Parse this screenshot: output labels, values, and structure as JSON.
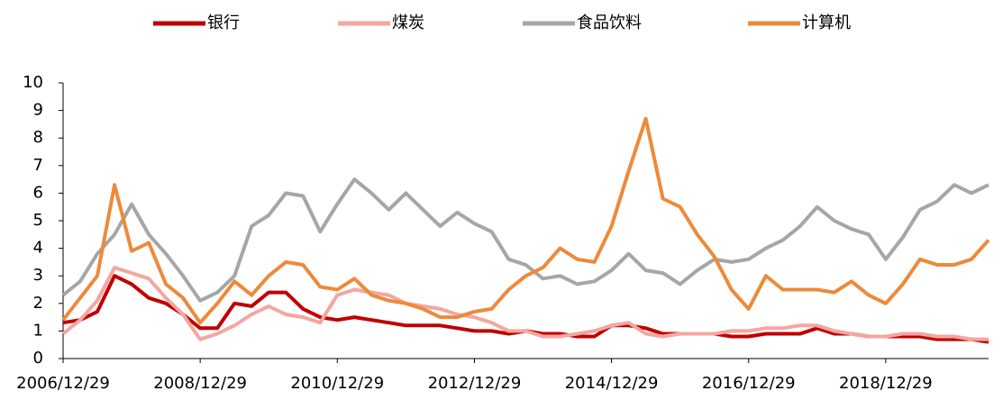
{
  "chart_data": {
    "type": "line",
    "x": [
      "2006/12/29",
      null,
      null,
      null,
      null,
      null,
      null,
      null,
      "2008/12/29",
      null,
      null,
      null,
      null,
      null,
      null,
      null,
      "2010/12/29",
      null,
      null,
      null,
      null,
      null,
      null,
      null,
      "2012/12/29",
      null,
      null,
      null,
      null,
      null,
      null,
      null,
      "2014/12/29",
      null,
      null,
      null,
      null,
      null,
      null,
      null,
      "2016/12/29",
      null,
      null,
      null,
      null,
      null,
      null,
      null,
      "2018/12/29",
      null,
      null,
      null,
      null,
      null,
      null
    ],
    "series": [
      {
        "name": "银行",
        "color": "#c00000",
        "values": [
          1.3,
          1.4,
          1.7,
          3.0,
          2.7,
          2.2,
          2.0,
          1.6,
          1.1,
          1.1,
          2.0,
          1.9,
          2.4,
          2.4,
          1.8,
          1.5,
          1.4,
          1.5,
          1.4,
          1.3,
          1.2,
          1.2,
          1.2,
          1.1,
          1.0,
          1.0,
          0.9,
          1.0,
          0.9,
          0.9,
          0.8,
          0.8,
          1.2,
          1.2,
          1.1,
          0.9,
          0.9,
          0.9,
          0.9,
          0.8,
          0.8,
          0.9,
          0.9,
          0.9,
          1.1,
          0.9,
          0.9,
          0.8,
          0.8,
          0.8,
          0.8,
          0.7,
          0.7,
          0.7,
          0.6
        ]
      },
      {
        "name": "煤炭",
        "color": "#f4a6a0",
        "values": [
          0.9,
          1.4,
          2.1,
          3.3,
          3.1,
          2.9,
          2.2,
          1.6,
          0.7,
          0.9,
          1.2,
          1.6,
          1.9,
          1.6,
          1.5,
          1.3,
          2.3,
          2.5,
          2.4,
          2.3,
          2.0,
          1.9,
          1.8,
          1.6,
          1.5,
          1.3,
          1.0,
          1.0,
          0.8,
          0.8,
          0.9,
          1.0,
          1.2,
          1.3,
          0.9,
          0.8,
          0.9,
          0.9,
          0.9,
          1.0,
          1.0,
          1.1,
          1.1,
          1.2,
          1.2,
          1.0,
          0.9,
          0.8,
          0.8,
          0.9,
          0.9,
          0.8,
          0.8,
          0.7,
          0.7
        ]
      },
      {
        "name": "食品饮料",
        "color": "#a6a6a6",
        "values": [
          2.3,
          2.8,
          3.8,
          4.5,
          5.6,
          4.5,
          3.8,
          3.0,
          2.1,
          2.4,
          3.0,
          4.8,
          5.2,
          6.0,
          5.9,
          4.6,
          5.6,
          6.5,
          6.0,
          5.4,
          6.0,
          5.4,
          4.8,
          5.3,
          4.9,
          4.6,
          3.6,
          3.4,
          2.9,
          3.0,
          2.7,
          2.8,
          3.2,
          3.8,
          3.2,
          3.1,
          2.7,
          3.2,
          3.6,
          3.5,
          3.6,
          4.0,
          4.3,
          4.8,
          5.5,
          5.0,
          4.7,
          4.5,
          3.6,
          4.4,
          5.4,
          5.7,
          6.3,
          6.0,
          6.3
        ]
      },
      {
        "name": "计算机",
        "color": "#ed8a3a",
        "values": [
          1.4,
          2.2,
          3.0,
          6.3,
          3.9,
          4.2,
          2.7,
          2.2,
          1.3,
          2.0,
          2.8,
          2.3,
          3.0,
          3.5,
          3.4,
          2.6,
          2.5,
          2.9,
          2.3,
          2.1,
          2.0,
          1.8,
          1.5,
          1.5,
          1.7,
          1.8,
          2.5,
          3.0,
          3.3,
          4.0,
          3.6,
          3.5,
          4.8,
          6.8,
          8.7,
          5.8,
          5.5,
          4.5,
          3.7,
          2.5,
          1.8,
          3.0,
          2.5,
          2.5,
          2.5,
          2.4,
          2.8,
          2.3,
          2.0,
          2.7,
          3.6,
          3.4,
          3.4,
          3.6,
          4.3
        ]
      }
    ],
    "ylim": [
      0,
      10
    ],
    "yticks": [
      0,
      1,
      2,
      3,
      4,
      5,
      6,
      7,
      8,
      9,
      10
    ]
  }
}
